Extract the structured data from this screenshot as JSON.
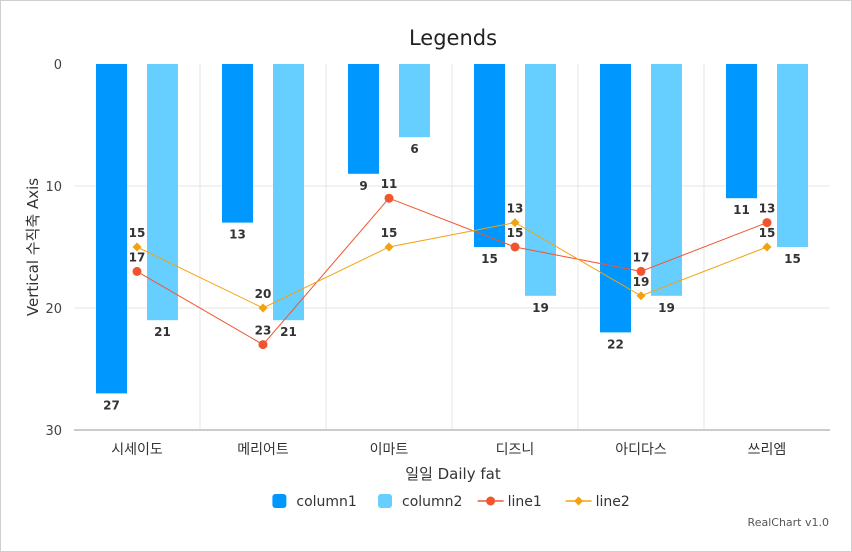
{
  "chart_data": {
    "type": "bar",
    "title": "Legends",
    "xlabel": "일일 Daily fat",
    "ylabel": "Vertical 수직축 Axis",
    "ylim": [
      0,
      30
    ],
    "y_reversed": true,
    "y_ticks": [
      "0",
      "10",
      "20",
      "30"
    ],
    "grid": true,
    "legend_placement": "bottom",
    "categories": [
      "시세이도",
      "메리어트",
      "이마트",
      "디즈니",
      "아디다스",
      "쓰리엠"
    ],
    "series": [
      {
        "name": "column1",
        "kind": "bar",
        "color": "#0098FF",
        "values": [
          27,
          13,
          9,
          15,
          22,
          11
        ]
      },
      {
        "name": "column2",
        "kind": "bar",
        "color": "#66CFFF",
        "values": [
          21,
          21,
          6,
          19,
          19,
          15
        ]
      },
      {
        "name": "line1",
        "kind": "line",
        "color": "#F25430",
        "marker": "circle",
        "values": [
          17,
          23,
          11,
          15,
          17,
          13
        ]
      },
      {
        "name": "line2",
        "kind": "line",
        "color": "#F2A20F",
        "marker": "diamond",
        "values": [
          15,
          20,
          15,
          13,
          19,
          15
        ]
      }
    ]
  },
  "credits": "RealChart v1.0"
}
